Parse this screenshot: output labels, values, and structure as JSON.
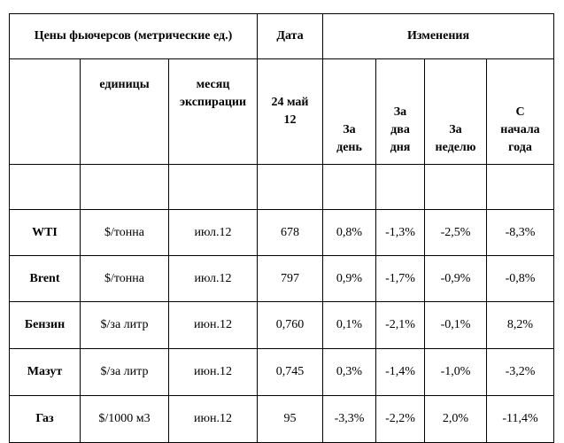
{
  "header": {
    "title": "Цены фьючерсов (метрические ед.)",
    "date_label": "Дата",
    "changes_label": "Изменения"
  },
  "subheader": {
    "units": "единицы",
    "expiry_line1": "месяц",
    "expiry_line2": "экспирации",
    "date_line1": "24 май",
    "date_line2": "12",
    "day_line1": "За",
    "day_line2": "день",
    "twodays_line1": "За",
    "twodays_line2": "два",
    "twodays_line3": "дня",
    "week_line1": "За",
    "week_line2": "неделю",
    "ytd_line1": "С",
    "ytd_line2": "начала",
    "ytd_line3": "года"
  },
  "rows": [
    {
      "name": "WTI",
      "unit": "$/тонна",
      "expiry": "июл.12",
      "price": "678",
      "day": "0,8%",
      "two_days": "-1,3%",
      "week": "-2,5%",
      "ytd": "-8,3%"
    },
    {
      "name": "Brent",
      "unit": "$/тонна",
      "expiry": "июл.12",
      "price": "797",
      "day": "0,9%",
      "two_days": "-1,7%",
      "week": "-0,9%",
      "ytd": "-0,8%"
    },
    {
      "name": "Бензин",
      "unit": "$/за литр",
      "expiry": "июн.12",
      "price": "0,760",
      "day": "0,1%",
      "two_days": "-2,1%",
      "week": "-0,1%",
      "ytd": "8,2%"
    },
    {
      "name": "Мазут",
      "unit": "$/за литр",
      "expiry": "июн.12",
      "price": "0,745",
      "day": "0,3%",
      "two_days": "-1,4%",
      "week": "-1,0%",
      "ytd": "-3,2%"
    },
    {
      "name": "Газ",
      "unit": "$/1000 м3",
      "expiry": "июн.12",
      "price": "95",
      "day": "-3,3%",
      "two_days": "-2,2%",
      "week": "2,0%",
      "ytd": "-11,4%"
    }
  ]
}
